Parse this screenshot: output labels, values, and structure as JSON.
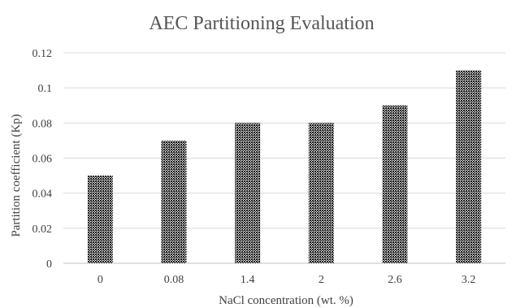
{
  "chart_data": {
    "type": "bar",
    "title": "AEC Partitioning Evaluation",
    "xlabel": "NaCl concentration (wt. %)",
    "ylabel": "Partition coefficient (Kp)",
    "categories": [
      "0",
      "0.08",
      "1.4",
      "2",
      "2.6",
      "3.2"
    ],
    "values": [
      0.05,
      0.07,
      0.08,
      0.08,
      0.09,
      0.11
    ],
    "ylim": [
      0,
      0.12
    ],
    "yticks": [
      "0",
      "0.02",
      "0.04",
      "0.06",
      "0.08",
      "0.1",
      "0.12"
    ],
    "grid": true,
    "legend": "none",
    "bar_color": "#1a1a1a",
    "bar_pattern": "dotted"
  }
}
